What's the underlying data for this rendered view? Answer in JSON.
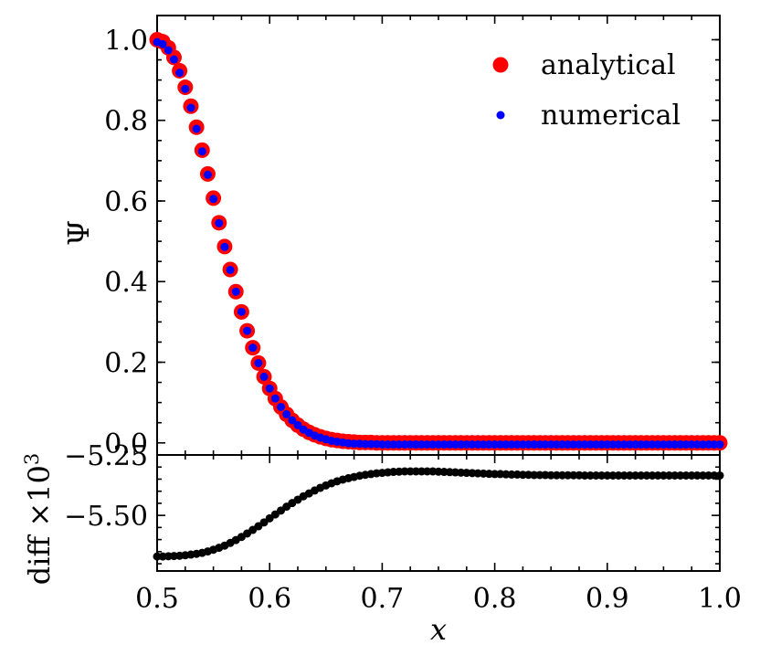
{
  "chart_data": [
    {
      "type": "scatter",
      "panel": "main",
      "ylabel": "Ψ",
      "xlim": [
        0.5,
        1.0
      ],
      "ylim": [
        -0.03,
        1.06
      ],
      "yticks": [
        0.0,
        0.2,
        0.4,
        0.6,
        0.8,
        1.0
      ],
      "ytick_labels": [
        "0.0",
        "0.2",
        "0.4",
        "0.6",
        "0.8",
        "1.0"
      ],
      "legend_position": "top-right",
      "grid": false,
      "x": [
        0.5,
        0.505,
        0.51,
        0.515,
        0.52,
        0.525,
        0.53,
        0.535,
        0.54,
        0.545,
        0.55,
        0.555,
        0.56,
        0.565,
        0.57,
        0.575,
        0.58,
        0.585,
        0.59,
        0.595,
        0.6,
        0.605,
        0.61,
        0.615,
        0.62,
        0.625,
        0.63,
        0.635,
        0.64,
        0.645,
        0.65,
        0.655,
        0.66,
        0.665,
        0.67,
        0.675,
        0.68,
        0.685,
        0.69,
        0.695,
        0.7,
        0.705,
        0.71,
        0.715,
        0.72,
        0.725,
        0.73,
        0.735,
        0.74,
        0.745,
        0.75,
        0.755,
        0.76,
        0.765,
        0.77,
        0.775,
        0.78,
        0.785,
        0.79,
        0.795,
        0.8,
        0.805,
        0.81,
        0.815,
        0.82,
        0.825,
        0.83,
        0.835,
        0.84,
        0.845,
        0.85,
        0.855,
        0.86,
        0.865,
        0.87,
        0.875,
        0.88,
        0.885,
        0.89,
        0.895,
        0.9,
        0.905,
        0.91,
        0.915,
        0.92,
        0.925,
        0.93,
        0.935,
        0.94,
        0.945,
        0.95,
        0.955,
        0.96,
        0.965,
        0.97,
        0.975,
        0.98,
        0.985,
        0.99,
        0.995,
        1.0
      ],
      "series": [
        {
          "name": "analytical",
          "color": "#ff0000",
          "marker": "large-dot",
          "values": [
            1.0,
            0.995,
            0.98,
            0.956,
            0.923,
            0.882,
            0.835,
            0.783,
            0.726,
            0.667,
            0.607,
            0.546,
            0.487,
            0.43,
            0.375,
            0.325,
            0.278,
            0.236,
            0.198,
            0.164,
            0.135,
            0.11,
            0.089,
            0.071,
            0.056,
            0.044,
            0.034,
            0.026,
            0.02,
            0.015,
            0.011,
            0.008,
            0.006,
            0.004,
            0.003,
            0.002,
            0.001,
            0.001,
            0.001,
            0.0,
            0.0,
            0.0,
            0.0,
            0.0,
            0.0,
            0.0,
            0.0,
            0.0,
            0.0,
            0.0,
            0.0,
            0.0,
            0.0,
            0.0,
            0.0,
            0.0,
            0.0,
            0.0,
            0.0,
            0.0,
            0.0,
            0.0,
            0.0,
            0.0,
            0.0,
            0.0,
            0.0,
            0.0,
            0.0,
            0.0,
            0.0,
            0.0,
            0.0,
            0.0,
            0.0,
            0.0,
            0.0,
            0.0,
            0.0,
            0.0,
            0.0,
            0.0,
            0.0,
            0.0,
            0.0,
            0.0,
            0.0,
            0.0,
            0.0,
            0.0,
            0.0,
            0.0,
            0.0,
            0.0,
            0.0,
            0.0,
            0.0,
            0.0,
            0.0,
            0.0,
            0.0
          ]
        },
        {
          "name": "numerical",
          "color": "#0000ff",
          "marker": "small-dot",
          "values": [
            0.994,
            0.989,
            0.974,
            0.951,
            0.918,
            0.878,
            0.831,
            0.779,
            0.723,
            0.665,
            0.605,
            0.545,
            0.486,
            0.429,
            0.375,
            0.325,
            0.278,
            0.236,
            0.198,
            0.164,
            0.135,
            0.11,
            0.089,
            0.071,
            0.056,
            0.044,
            0.033,
            0.025,
            0.018,
            0.013,
            0.009,
            0.005,
            0.003,
            0.001,
            -0.001,
            -0.002,
            -0.002,
            -0.003,
            -0.003,
            -0.003,
            -0.004,
            -0.004,
            -0.004,
            -0.004,
            -0.004,
            -0.004,
            -0.004,
            -0.004,
            -0.004,
            -0.004,
            -0.004,
            -0.004,
            -0.004,
            -0.004,
            -0.004,
            -0.004,
            -0.004,
            -0.004,
            -0.004,
            -0.004,
            -0.004,
            -0.004,
            -0.004,
            -0.004,
            -0.004,
            -0.004,
            -0.004,
            -0.004,
            -0.004,
            -0.004,
            -0.004,
            -0.004,
            -0.004,
            -0.004,
            -0.004,
            -0.004,
            -0.004,
            -0.004,
            -0.004,
            -0.004,
            -0.004,
            -0.004,
            -0.004,
            -0.004,
            -0.004,
            -0.004,
            -0.004,
            -0.004,
            -0.004,
            -0.004,
            -0.004,
            -0.004,
            -0.004,
            -0.004,
            -0.004,
            -0.004,
            -0.004,
            -0.004,
            -0.004,
            -0.004,
            -0.004
          ]
        }
      ]
    },
    {
      "type": "scatter",
      "panel": "residual",
      "xlabel": "x",
      "ylabel": "diff ×10",
      "ylabel_exponent": "3",
      "xlim": [
        0.5,
        1.0
      ],
      "ylim": [
        -5.73,
        -5.25
      ],
      "xticks": [
        0.5,
        0.6,
        0.7,
        0.8,
        0.9,
        1.0
      ],
      "xtick_labels": [
        "0.5",
        "0.6",
        "0.7",
        "0.8",
        "0.9",
        "1.0"
      ],
      "yticks": [
        -5.25,
        -5.5
      ],
      "ytick_labels": [
        "−5.25",
        "−5.50"
      ],
      "grid": false,
      "x": [
        0.5,
        0.505,
        0.51,
        0.515,
        0.52,
        0.525,
        0.53,
        0.535,
        0.54,
        0.545,
        0.55,
        0.555,
        0.56,
        0.565,
        0.57,
        0.575,
        0.58,
        0.585,
        0.59,
        0.595,
        0.6,
        0.605,
        0.61,
        0.615,
        0.62,
        0.625,
        0.63,
        0.635,
        0.64,
        0.645,
        0.65,
        0.655,
        0.66,
        0.665,
        0.67,
        0.675,
        0.68,
        0.685,
        0.69,
        0.695,
        0.7,
        0.705,
        0.71,
        0.715,
        0.72,
        0.725,
        0.73,
        0.735,
        0.74,
        0.745,
        0.75,
        0.755,
        0.76,
        0.765,
        0.77,
        0.775,
        0.78,
        0.785,
        0.79,
        0.795,
        0.8,
        0.805,
        0.81,
        0.815,
        0.82,
        0.825,
        0.83,
        0.835,
        0.84,
        0.845,
        0.85,
        0.855,
        0.86,
        0.865,
        0.87,
        0.875,
        0.88,
        0.885,
        0.89,
        0.895,
        0.9,
        0.905,
        0.91,
        0.915,
        0.92,
        0.925,
        0.93,
        0.935,
        0.94,
        0.945,
        0.95,
        0.955,
        0.96,
        0.965,
        0.97,
        0.975,
        0.98,
        0.985,
        0.99,
        0.995,
        1.0
      ],
      "series": [
        {
          "color": "#000000",
          "marker": "dot",
          "values": [
            -5.67,
            -5.67,
            -5.669,
            -5.668,
            -5.667,
            -5.665,
            -5.662,
            -5.659,
            -5.655,
            -5.649,
            -5.642,
            -5.634,
            -5.625,
            -5.614,
            -5.602,
            -5.589,
            -5.575,
            -5.56,
            -5.545,
            -5.529,
            -5.512,
            -5.496,
            -5.48,
            -5.464,
            -5.449,
            -5.435,
            -5.421,
            -5.409,
            -5.397,
            -5.386,
            -5.376,
            -5.367,
            -5.359,
            -5.352,
            -5.346,
            -5.341,
            -5.336,
            -5.332,
            -5.329,
            -5.326,
            -5.324,
            -5.322,
            -5.32,
            -5.319,
            -5.318,
            -5.318,
            -5.318,
            -5.318,
            -5.318,
            -5.318,
            -5.319,
            -5.32,
            -5.321,
            -5.322,
            -5.323,
            -5.324,
            -5.325,
            -5.326,
            -5.327,
            -5.328,
            -5.329,
            -5.329,
            -5.33,
            -5.331,
            -5.331,
            -5.332,
            -5.332,
            -5.333,
            -5.333,
            -5.333,
            -5.334,
            -5.334,
            -5.334,
            -5.334,
            -5.334,
            -5.334,
            -5.335,
            -5.335,
            -5.335,
            -5.335,
            -5.335,
            -5.335,
            -5.335,
            -5.335,
            -5.335,
            -5.335,
            -5.335,
            -5.335,
            -5.335,
            -5.335,
            -5.335,
            -5.335,
            -5.335,
            -5.335,
            -5.335,
            -5.335,
            -5.335,
            -5.335,
            -5.335,
            -5.335,
            -5.335
          ]
        }
      ]
    }
  ]
}
